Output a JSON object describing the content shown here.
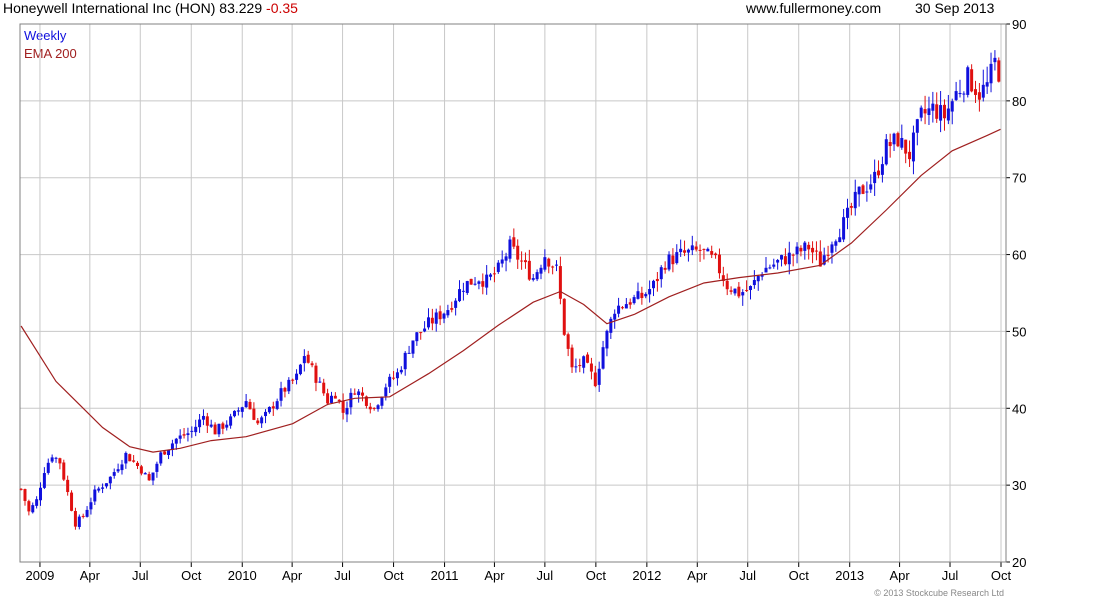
{
  "header": {
    "title": "Honeywell International Inc (HON) 83.229",
    "change": "-0.35",
    "source": "www.fullermoney.com",
    "date": "30 Sep 2013"
  },
  "legend": {
    "period": "Weekly",
    "indicator": "EMA 200"
  },
  "credit": "© 2013 Stockcube Research Ltd",
  "colors": {
    "up": "#1010dd",
    "down": "#e01010",
    "ema": "#a02020",
    "grid": "#c8c8c8",
    "change": "#cc0000",
    "period_label": "#1010dd",
    "indicator_label": "#a02020"
  },
  "chart_data": {
    "type": "candlestick",
    "x_labels": [
      "2009",
      "Apr",
      "Jul",
      "Oct",
      "2010",
      "Apr",
      "Jul",
      "Oct",
      "2011",
      "Apr",
      "Jul",
      "Oct",
      "2012",
      "Apr",
      "Jul",
      "Oct",
      "2013",
      "Apr",
      "Jul",
      "Oct"
    ],
    "y_ticks": [
      20,
      30,
      40,
      50,
      60,
      70,
      80,
      90
    ],
    "ylim": [
      20,
      90
    ],
    "y_axis_side": "right",
    "grid": true,
    "series": [
      {
        "name": "Weekly",
        "anchors": [
          [
            "2008-11-28",
            29.5
          ],
          [
            "2008-12-12",
            26.5
          ],
          [
            "2008-12-26",
            28
          ],
          [
            "2009-01-09",
            32
          ],
          [
            "2009-01-23",
            34
          ],
          [
            "2009-02-06",
            33
          ],
          [
            "2009-02-20",
            29
          ],
          [
            "2009-03-06",
            25
          ],
          [
            "2009-03-20",
            26
          ],
          [
            "2009-04-10",
            29
          ],
          [
            "2009-05-08",
            31
          ],
          [
            "2009-06-05",
            34
          ],
          [
            "2009-07-03",
            32
          ],
          [
            "2009-07-17",
            30.5
          ],
          [
            "2009-08-07",
            34
          ],
          [
            "2009-09-04",
            36
          ],
          [
            "2009-10-02",
            37
          ],
          [
            "2009-10-23",
            39
          ],
          [
            "2009-11-13",
            37
          ],
          [
            "2009-12-11",
            38.5
          ],
          [
            "2010-01-08",
            41
          ],
          [
            "2010-01-29",
            38
          ],
          [
            "2010-02-12",
            39
          ],
          [
            "2010-03-12",
            42
          ],
          [
            "2010-04-09",
            44
          ],
          [
            "2010-04-23",
            47
          ],
          [
            "2010-05-14",
            44
          ],
          [
            "2010-06-04",
            41
          ],
          [
            "2010-06-18",
            42
          ],
          [
            "2010-07-02",
            39.5
          ],
          [
            "2010-07-23",
            42.5
          ],
          [
            "2010-08-13",
            41
          ],
          [
            "2010-08-27",
            40
          ],
          [
            "2010-09-17",
            43
          ],
          [
            "2010-10-08",
            44.5
          ],
          [
            "2010-11-05",
            49
          ],
          [
            "2010-12-03",
            51
          ],
          [
            "2011-01-07",
            53
          ],
          [
            "2011-02-04",
            56
          ],
          [
            "2011-03-04",
            57
          ],
          [
            "2011-03-18",
            56.5
          ],
          [
            "2011-04-08",
            58
          ],
          [
            "2011-04-29",
            61
          ],
          [
            "2011-05-20",
            59
          ],
          [
            "2011-06-10",
            57
          ],
          [
            "2011-07-01",
            60
          ],
          [
            "2011-07-22",
            58
          ],
          [
            "2011-08-05",
            50
          ],
          [
            "2011-08-19",
            45
          ],
          [
            "2011-09-09",
            46
          ],
          [
            "2011-09-30",
            43.5
          ],
          [
            "2011-10-14",
            48
          ],
          [
            "2011-11-04",
            53
          ],
          [
            "2011-12-02",
            54
          ],
          [
            "2011-12-23",
            54.5
          ],
          [
            "2012-01-13",
            56
          ],
          [
            "2012-02-03",
            59
          ],
          [
            "2012-03-02",
            60
          ],
          [
            "2012-04-06",
            60.5
          ],
          [
            "2012-05-04",
            59
          ],
          [
            "2012-05-25",
            56
          ],
          [
            "2012-06-15",
            55
          ],
          [
            "2012-07-06",
            55.5
          ],
          [
            "2012-07-27",
            58
          ],
          [
            "2012-08-24",
            59
          ],
          [
            "2012-09-21",
            60
          ],
          [
            "2012-10-19",
            61
          ],
          [
            "2012-11-09",
            59
          ],
          [
            "2012-11-30",
            62
          ],
          [
            "2012-12-21",
            64
          ],
          [
            "2013-01-18",
            68
          ],
          [
            "2013-02-15",
            70
          ],
          [
            "2013-03-08",
            74
          ],
          [
            "2013-03-29",
            75
          ],
          [
            "2013-04-19",
            73
          ],
          [
            "2013-05-10",
            78
          ],
          [
            "2013-05-31",
            79
          ],
          [
            "2013-06-21",
            78
          ],
          [
            "2013-07-12",
            81
          ],
          [
            "2013-08-02",
            83
          ],
          [
            "2013-08-23",
            81
          ],
          [
            "2013-09-06",
            82
          ],
          [
            "2013-09-20",
            85
          ],
          [
            "2013-09-30",
            83.2
          ]
        ]
      },
      {
        "name": "EMA 200",
        "points": [
          [
            "2008-11-28",
            50.7
          ],
          [
            "2008-12-26",
            47.5
          ],
          [
            "2009-01-30",
            43.5
          ],
          [
            "2009-03-13",
            40.5
          ],
          [
            "2009-04-24",
            37.5
          ],
          [
            "2009-06-12",
            35
          ],
          [
            "2009-07-24",
            34.3
          ],
          [
            "2009-09-11",
            34.8
          ],
          [
            "2009-11-06",
            35.8
          ],
          [
            "2010-01-08",
            36.3
          ],
          [
            "2010-04-02",
            38
          ],
          [
            "2010-06-04",
            40.5
          ],
          [
            "2010-07-23",
            41.3
          ],
          [
            "2010-09-24",
            41.5
          ],
          [
            "2010-12-03",
            44.5
          ],
          [
            "2011-02-04",
            47.5
          ],
          [
            "2011-04-08",
            50.8
          ],
          [
            "2011-06-10",
            53.8
          ],
          [
            "2011-07-29",
            55.2
          ],
          [
            "2011-09-09",
            53.5
          ],
          [
            "2011-10-21",
            51
          ],
          [
            "2011-12-09",
            52.2
          ],
          [
            "2012-02-10",
            54.5
          ],
          [
            "2012-04-13",
            56.3
          ],
          [
            "2012-06-15",
            57
          ],
          [
            "2012-08-24",
            57.6
          ],
          [
            "2012-11-09",
            58.6
          ],
          [
            "2013-01-04",
            61.5
          ],
          [
            "2013-03-08",
            65.8
          ],
          [
            "2013-05-10",
            70.3
          ],
          [
            "2013-07-05",
            73.5
          ],
          [
            "2013-09-06",
            75.5
          ],
          [
            "2013-09-30",
            76.3
          ]
        ]
      }
    ]
  }
}
